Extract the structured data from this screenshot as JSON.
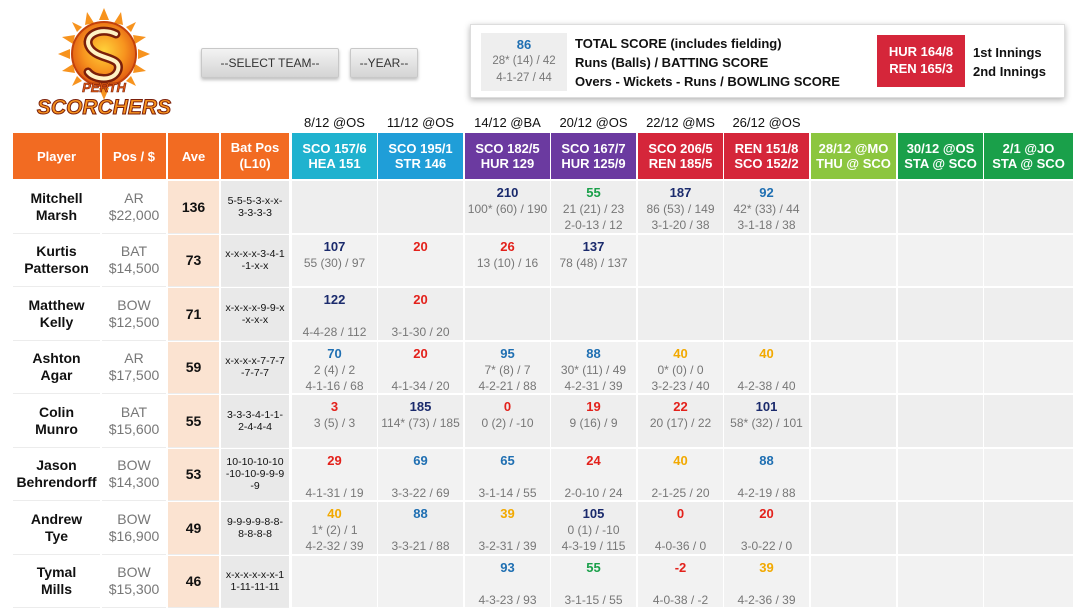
{
  "logo": {
    "text_top": "PERTH",
    "text_bottom": "SCORCHERS"
  },
  "selectors": {
    "team": "--SELECT TEAM--",
    "year": "--YEAR--"
  },
  "legend": {
    "sample_total": "86",
    "sample_batting": "28* (14) / 42",
    "sample_bowling": "4-1-27 / 44",
    "line1": "TOTAL SCORE (includes fielding)",
    "line2": "Runs (Balls) / BATTING SCORE",
    "line3": "Overs - Wickets - Runs / BOWLING SCORE",
    "score1": "HUR 164/8",
    "score2": "REN 165/3",
    "inn1": "1st Innings",
    "inn2": "2nd Innings"
  },
  "colors": {
    "orange": "#f26b22",
    "teal": "#1fb2cf",
    "sky": "#1f9ed8",
    "purple": "#6b3aa0",
    "magenta": "#cc2a7a",
    "red": "#d5263a",
    "crimson": "#c4203a",
    "lime": "#8cc63f",
    "green": "#1aa04a",
    "good": "#1f6fb2",
    "bad": "#e3211b",
    "mid": "#f2a900",
    "great": "#1a2a6c",
    "fine": "#3aa03a"
  },
  "columns": {
    "player": "Player",
    "pos": "Pos / $",
    "ave": "Ave",
    "batpos": "Bat Pos (L10)"
  },
  "matches": [
    {
      "date": "8/12 @OS",
      "l1": "SCO 157/6",
      "l2": "HEA 151",
      "color": "#1fb2cf"
    },
    {
      "date": "11/12 @OS",
      "l1": "SCO 195/1",
      "l2": "STR 146",
      "color": "#1f9ed8"
    },
    {
      "date": "14/12 @BA",
      "l1": "SCO 182/5",
      "l2": "HUR 129",
      "color": "#6b3aa0"
    },
    {
      "date": "20/12 @OS",
      "l1": "SCO 167/7",
      "l2": "HUR 125/9",
      "color": "#6b3aa0"
    },
    {
      "date": "22/12 @MS",
      "l1": "SCO 206/5",
      "l2": "REN 185/5",
      "color": "#d5263a"
    },
    {
      "date": "26/12 @OS",
      "l1": "REN 151/8",
      "l2": "SCO 152/2",
      "color": "#d5263a"
    },
    {
      "date": "",
      "l1": "28/12 @MO",
      "l2": "THU @ SCO",
      "color": "#8cc63f"
    },
    {
      "date": "",
      "l1": "30/12 @OS",
      "l2": "STA @ SCO",
      "color": "#1aa04a"
    },
    {
      "date": "",
      "l1": "2/1 @JO",
      "l2": "STA @ SCO",
      "color": "#1aa04a"
    }
  ],
  "players": [
    {
      "first": "Mitchell",
      "last": "Marsh",
      "pos": "AR",
      "price": "$22,000",
      "ave": "136",
      "batpos": "5-5-5-3-x-x-3-3-3-3",
      "games": [
        {
          "t": "",
          "b": "",
          "w": "",
          "c": ""
        },
        {
          "t": "",
          "b": "",
          "w": "",
          "c": ""
        },
        {
          "t": "210",
          "b": "100* (60) / 190",
          "w": "",
          "c": "#1a2a6c"
        },
        {
          "t": "55",
          "b": "21 (21) / 23",
          "w": "2-0-13 / 12",
          "c": "#1aa04a"
        },
        {
          "t": "187",
          "b": "86 (53) / 149",
          "w": "3-1-20 / 38",
          "c": "#1a2a6c"
        },
        {
          "t": "92",
          "b": "42* (33) / 44",
          "w": "3-1-18 / 38",
          "c": "#1f6fb2"
        },
        {
          "t": "",
          "b": "",
          "w": "",
          "c": ""
        },
        {
          "t": "",
          "b": "",
          "w": "",
          "c": ""
        },
        {
          "t": "",
          "b": "",
          "w": "",
          "c": ""
        }
      ]
    },
    {
      "first": "Kurtis",
      "last": "Patterson",
      "pos": "BAT",
      "price": "$14,500",
      "ave": "73",
      "batpos": "x-x-x-x-3-4-1-1-x-x",
      "games": [
        {
          "t": "107",
          "b": "55 (30) / 97",
          "w": "",
          "c": "#1a2a6c"
        },
        {
          "t": "20",
          "b": "",
          "w": "",
          "c": "#e3211b"
        },
        {
          "t": "26",
          "b": "13 (10) / 16",
          "w": "",
          "c": "#e3211b"
        },
        {
          "t": "137",
          "b": "78 (48) / 137",
          "w": "",
          "c": "#1a2a6c"
        },
        {
          "t": "",
          "b": "",
          "w": "",
          "c": ""
        },
        {
          "t": "",
          "b": "",
          "w": "",
          "c": ""
        },
        {
          "t": "",
          "b": "",
          "w": "",
          "c": ""
        },
        {
          "t": "",
          "b": "",
          "w": "",
          "c": ""
        },
        {
          "t": "",
          "b": "",
          "w": "",
          "c": ""
        }
      ]
    },
    {
      "first": "Matthew",
      "last": "Kelly",
      "pos": "BOW",
      "price": "$12,500",
      "ave": "71",
      "batpos": "x-x-x-x-9-9-x-x-x-x",
      "games": [
        {
          "t": "122",
          "b": "",
          "w": "4-4-28 / 112",
          "c": "#1a2a6c"
        },
        {
          "t": "20",
          "b": "",
          "w": "3-1-30 / 20",
          "c": "#e3211b"
        },
        {
          "t": "",
          "b": "",
          "w": "",
          "c": ""
        },
        {
          "t": "",
          "b": "",
          "w": "",
          "c": ""
        },
        {
          "t": "",
          "b": "",
          "w": "",
          "c": ""
        },
        {
          "t": "",
          "b": "",
          "w": "",
          "c": ""
        },
        {
          "t": "",
          "b": "",
          "w": "",
          "c": ""
        },
        {
          "t": "",
          "b": "",
          "w": "",
          "c": ""
        },
        {
          "t": "",
          "b": "",
          "w": "",
          "c": ""
        }
      ]
    },
    {
      "first": "Ashton",
      "last": "Agar",
      "pos": "AR",
      "price": "$17,500",
      "ave": "59",
      "batpos": "x-x-x-x-7-7-7-7-7-7",
      "games": [
        {
          "t": "70",
          "b": "2 (4) / 2",
          "w": "4-1-16 / 68",
          "c": "#1f6fb2"
        },
        {
          "t": "20",
          "b": "",
          "w": "4-1-34 / 20",
          "c": "#e3211b"
        },
        {
          "t": "95",
          "b": "7* (8) / 7",
          "w": "4-2-21 / 88",
          "c": "#1f6fb2"
        },
        {
          "t": "88",
          "b": "30* (11) / 49",
          "w": "4-2-31 / 39",
          "c": "#1f6fb2"
        },
        {
          "t": "40",
          "b": "0* (0) / 0",
          "w": "3-2-23 / 40",
          "c": "#f2a900"
        },
        {
          "t": "40",
          "b": "",
          "w": "4-2-38 / 40",
          "c": "#f2a900"
        },
        {
          "t": "",
          "b": "",
          "w": "",
          "c": ""
        },
        {
          "t": "",
          "b": "",
          "w": "",
          "c": ""
        },
        {
          "t": "",
          "b": "",
          "w": "",
          "c": ""
        }
      ]
    },
    {
      "first": "Colin",
      "last": "Munro",
      "pos": "BAT",
      "price": "$15,600",
      "ave": "55",
      "batpos": "3-3-3-4-1-1-2-4-4-4",
      "games": [
        {
          "t": "3",
          "b": "3 (5) / 3",
          "w": "",
          "c": "#e3211b"
        },
        {
          "t": "185",
          "b": "114* (73) / 185",
          "w": "",
          "c": "#1a2a6c"
        },
        {
          "t": "0",
          "b": "0 (2) / -10",
          "w": "",
          "c": "#e3211b"
        },
        {
          "t": "19",
          "b": "9 (16) / 9",
          "w": "",
          "c": "#e3211b"
        },
        {
          "t": "22",
          "b": "20 (17) / 22",
          "w": "",
          "c": "#e3211b"
        },
        {
          "t": "101",
          "b": "58* (32) / 101",
          "w": "",
          "c": "#1a2a6c"
        },
        {
          "t": "",
          "b": "",
          "w": "",
          "c": ""
        },
        {
          "t": "",
          "b": "",
          "w": "",
          "c": ""
        },
        {
          "t": "",
          "b": "",
          "w": "",
          "c": ""
        }
      ]
    },
    {
      "first": "Jason",
      "last": "Behrendorff",
      "pos": "BOW",
      "price": "$14,300",
      "ave": "53",
      "batpos": "10-10-10-10-10-10-9-9-9-9",
      "games": [
        {
          "t": "29",
          "b": "",
          "w": "4-1-31 / 19",
          "c": "#e3211b"
        },
        {
          "t": "69",
          "b": "",
          "w": "3-3-22 / 69",
          "c": "#1f6fb2"
        },
        {
          "t": "65",
          "b": "",
          "w": "3-1-14 / 55",
          "c": "#1f6fb2"
        },
        {
          "t": "24",
          "b": "",
          "w": "2-0-10 / 24",
          "c": "#e3211b"
        },
        {
          "t": "40",
          "b": "",
          "w": "2-1-25 / 20",
          "c": "#f2a900"
        },
        {
          "t": "88",
          "b": "",
          "w": "4-2-19 / 88",
          "c": "#1f6fb2"
        },
        {
          "t": "",
          "b": "",
          "w": "",
          "c": ""
        },
        {
          "t": "",
          "b": "",
          "w": "",
          "c": ""
        },
        {
          "t": "",
          "b": "",
          "w": "",
          "c": ""
        }
      ]
    },
    {
      "first": "Andrew",
      "last": "Tye",
      "pos": "BOW",
      "price": "$16,900",
      "ave": "49",
      "batpos": "9-9-9-9-8-8-8-8-8-8",
      "games": [
        {
          "t": "40",
          "b": "1* (2) / 1",
          "w": "4-2-32 / 39",
          "c": "#f2a900"
        },
        {
          "t": "88",
          "b": "",
          "w": "3-3-21 / 88",
          "c": "#1f6fb2"
        },
        {
          "t": "39",
          "b": "",
          "w": "3-2-31 / 39",
          "c": "#f2a900"
        },
        {
          "t": "105",
          "b": "0 (1) / -10",
          "w": "4-3-19 / 115",
          "c": "#1a2a6c"
        },
        {
          "t": "0",
          "b": "",
          "w": "4-0-36 / 0",
          "c": "#e3211b"
        },
        {
          "t": "20",
          "b": "",
          "w": "3-0-22 / 0",
          "c": "#e3211b"
        },
        {
          "t": "",
          "b": "",
          "w": "",
          "c": ""
        },
        {
          "t": "",
          "b": "",
          "w": "",
          "c": ""
        },
        {
          "t": "",
          "b": "",
          "w": "",
          "c": ""
        }
      ]
    },
    {
      "first": "Tymal",
      "last": "Mills",
      "pos": "BOW",
      "price": "$15,300",
      "ave": "46",
      "batpos": "x-x-x-x-x-x-11-11-11-11",
      "games": [
        {
          "t": "",
          "b": "",
          "w": "",
          "c": ""
        },
        {
          "t": "",
          "b": "",
          "w": "",
          "c": ""
        },
        {
          "t": "93",
          "b": "",
          "w": "4-3-23 / 93",
          "c": "#1f6fb2"
        },
        {
          "t": "55",
          "b": "",
          "w": "3-1-15 / 55",
          "c": "#1aa04a"
        },
        {
          "t": "-2",
          "b": "",
          "w": "4-0-38 / -2",
          "c": "#e3211b"
        },
        {
          "t": "39",
          "b": "",
          "w": "4-2-36 / 39",
          "c": "#f2a900"
        },
        {
          "t": "",
          "b": "",
          "w": "",
          "c": ""
        },
        {
          "t": "",
          "b": "",
          "w": "",
          "c": ""
        },
        {
          "t": "",
          "b": "",
          "w": "",
          "c": ""
        }
      ]
    }
  ]
}
